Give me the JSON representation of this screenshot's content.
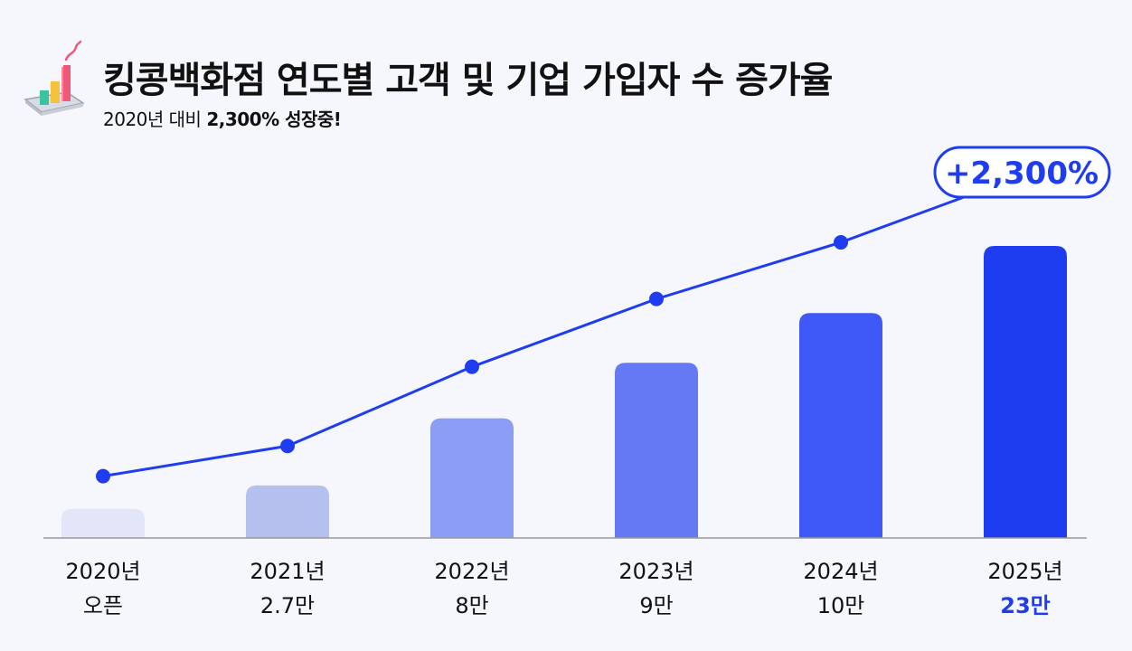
{
  "header": {
    "title": "킹콩백화점 연도별 고객 및 기업 가입자 수 증가율",
    "subtitle_prefix": "2020년 대비 ",
    "subtitle_strong": "2,300% 성장중!"
  },
  "icons": {
    "logo": "bar-chart-growth-icon"
  },
  "colors": {
    "accent": "#1f3df0",
    "bars": [
      "#e2e6f8",
      "#b6c0ee",
      "#8c9df5",
      "#6679f5",
      "#3f58f8",
      "#1f3df0"
    ],
    "axis": "#999999"
  },
  "chart_data": {
    "type": "bar",
    "categories": [
      "2020년",
      "2021년",
      "2022년",
      "2023년",
      "2024년",
      "2025년"
    ],
    "value_labels": [
      "오픈",
      "2.7만",
      "8만",
      "9만",
      "10만",
      "23만"
    ],
    "highlight_index": 5,
    "annotation": "+2,300%",
    "bar_heights": [
      0.1,
      0.18,
      0.41,
      0.6,
      0.77,
      1.0
    ],
    "line_values": [
      0.2,
      0.28,
      0.49,
      0.67,
      0.82,
      1.0
    ],
    "grid": false,
    "legend": "none"
  }
}
